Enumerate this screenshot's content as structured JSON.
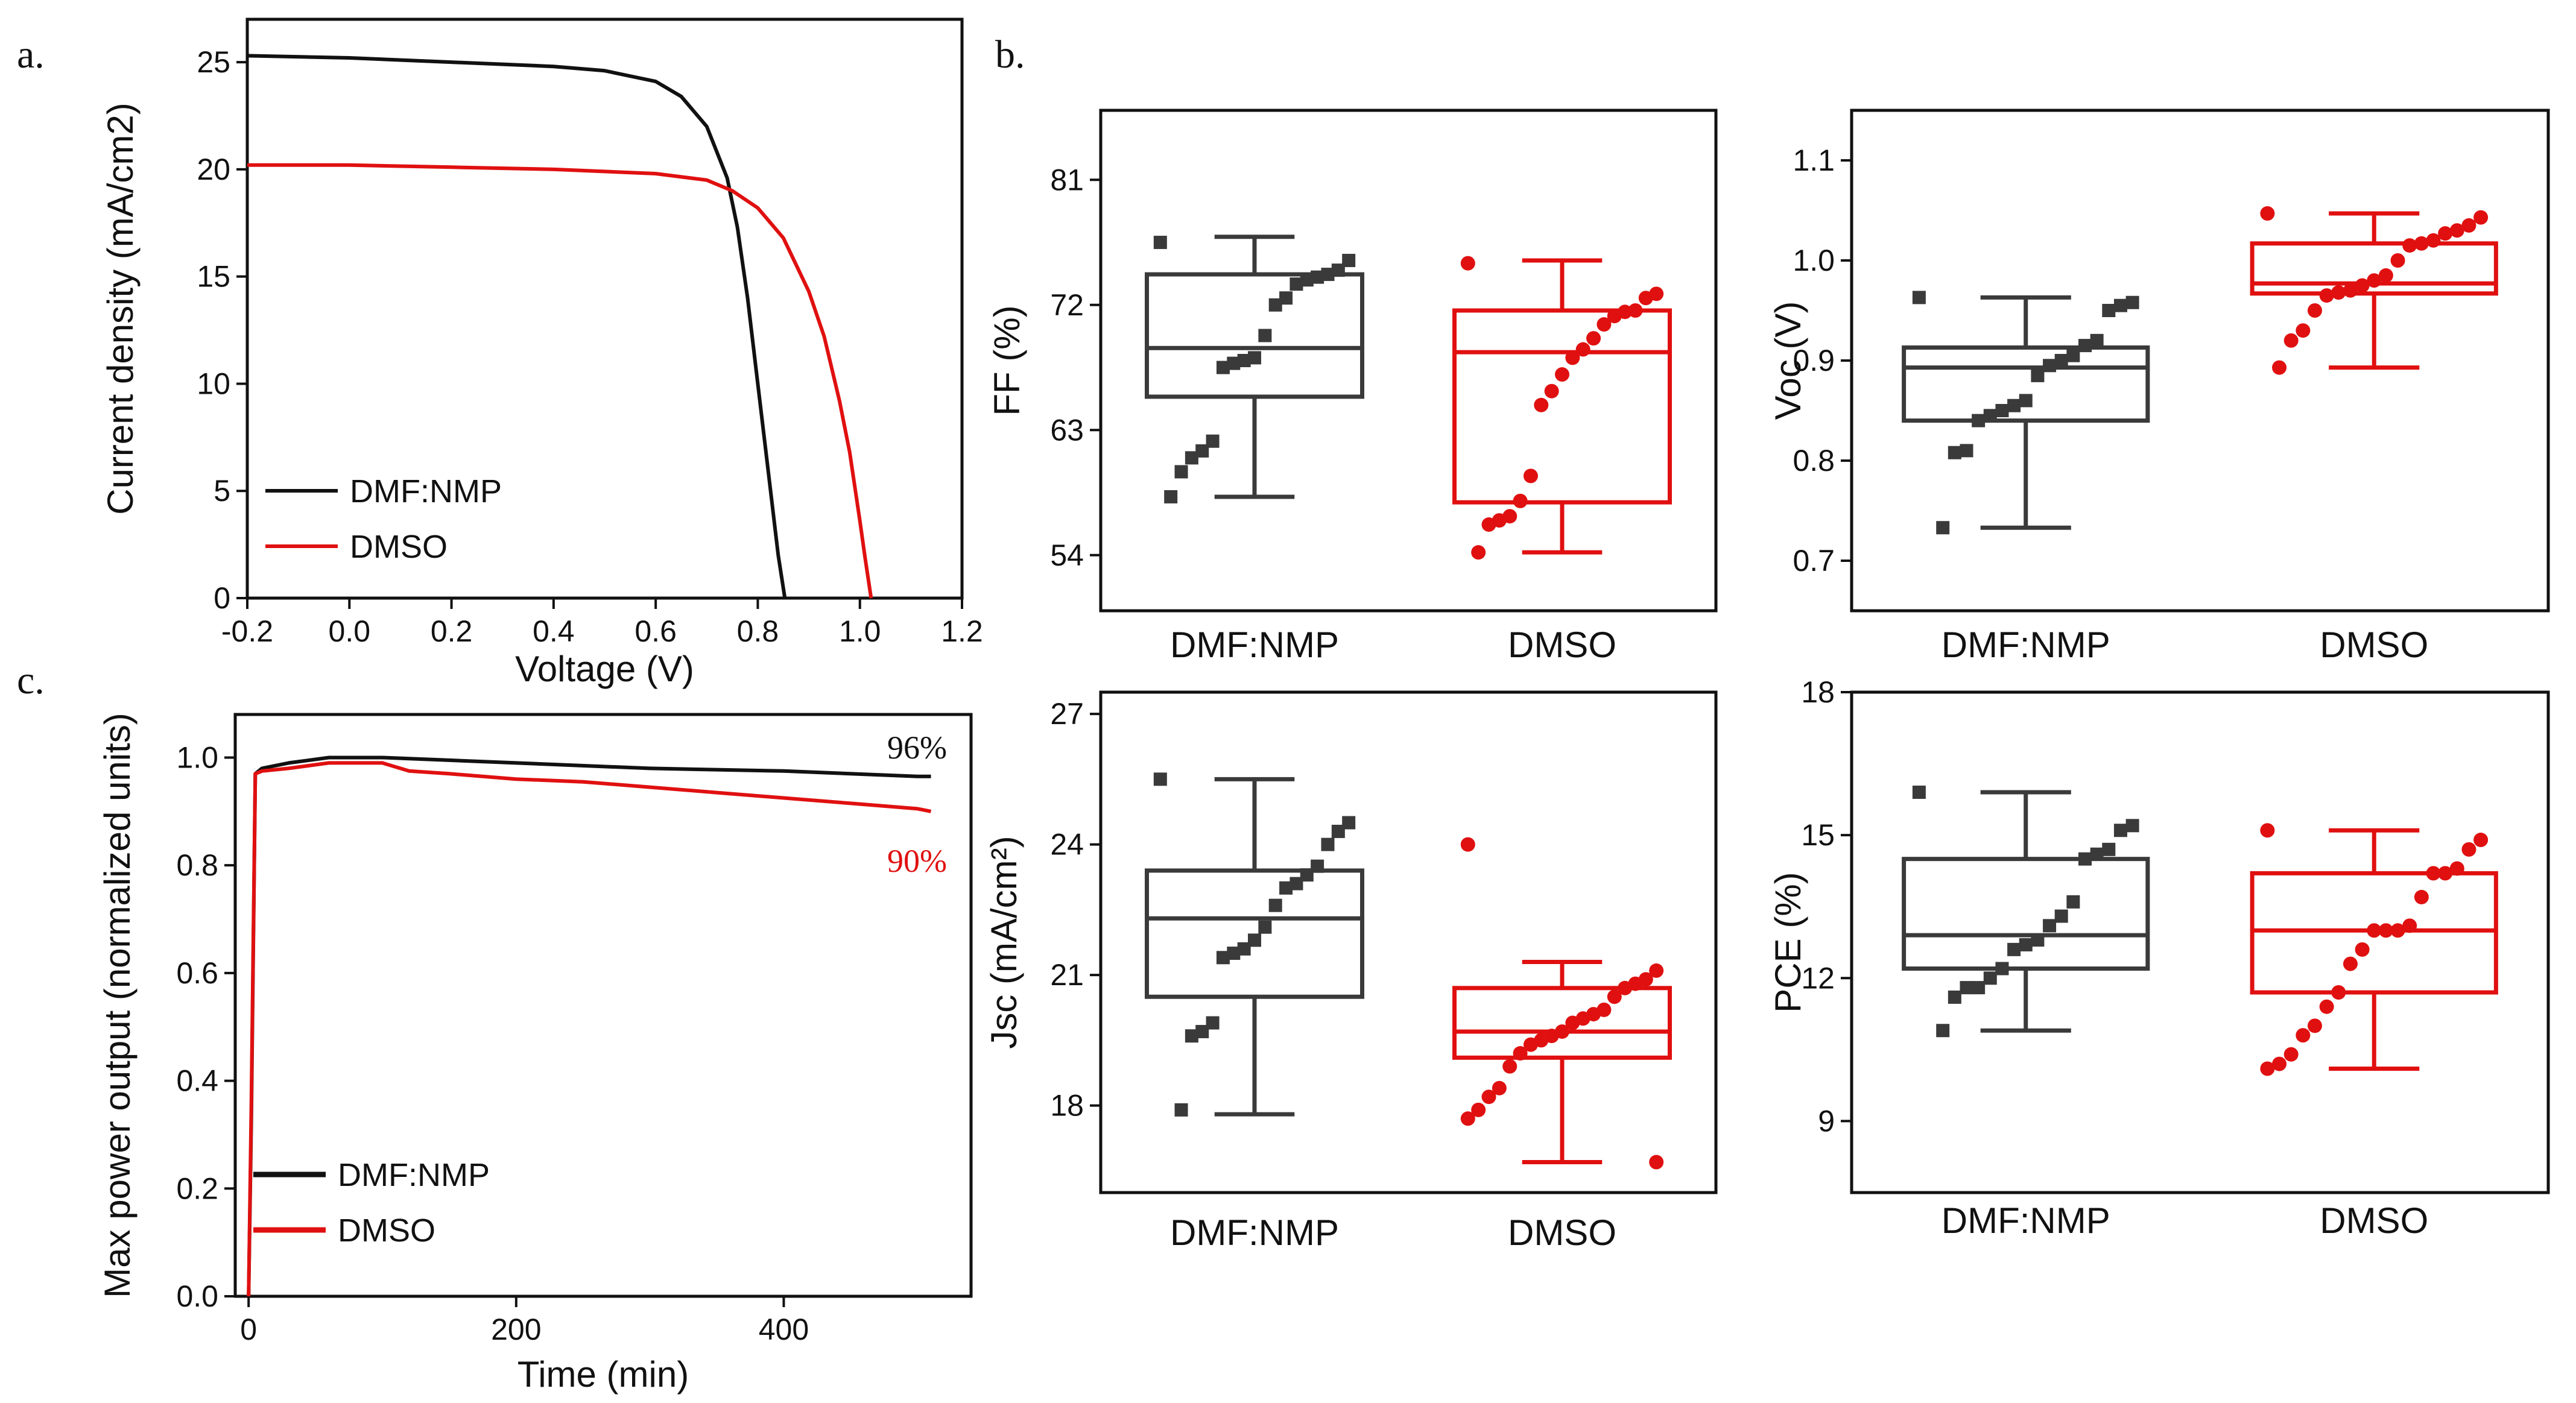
{
  "colors": {
    "black_series": "#111111",
    "red_series": "#e01010",
    "box_black": "#3a3a3a",
    "box_red": "#e01010"
  },
  "chart_data": [
    {
      "id": "a",
      "panel_label": "a.",
      "type": "line",
      "title": "",
      "xlabel": "Voltage (V)",
      "ylabel": "Current density (mA/cm2)",
      "xlim": [
        -0.2,
        1.2
      ],
      "ylim": [
        0,
        27
      ],
      "xticks": [
        -0.2,
        0.0,
        0.2,
        0.4,
        0.6,
        0.8,
        1.0,
        1.2
      ],
      "xtick_labels": [
        "-0.2",
        "0.0",
        "0.2",
        "0.4",
        "0.6",
        "0.8",
        "1.0",
        "1.2"
      ],
      "yticks": [
        0,
        5,
        10,
        15,
        20,
        25
      ],
      "ytick_labels": [
        "0",
        "5",
        "10",
        "15",
        "20",
        "25"
      ],
      "legend_position": "bottom-left",
      "series": [
        {
          "name": "DMF:NMP",
          "color": "#111111",
          "x": [
            -0.2,
            0.0,
            0.2,
            0.4,
            0.5,
            0.6,
            0.65,
            0.7,
            0.74,
            0.76,
            0.78,
            0.8,
            0.82,
            0.84,
            0.853
          ],
          "y": [
            25.3,
            25.2,
            25.0,
            24.8,
            24.6,
            24.1,
            23.4,
            22.0,
            19.6,
            17.3,
            14.0,
            10.0,
            6.0,
            2.0,
            0
          ]
        },
        {
          "name": "DMSO",
          "color": "#e01010",
          "x": [
            -0.2,
            0.0,
            0.2,
            0.4,
            0.6,
            0.7,
            0.75,
            0.8,
            0.85,
            0.9,
            0.93,
            0.96,
            0.98,
            1.0,
            1.01,
            1.022
          ],
          "y": [
            20.2,
            20.2,
            20.1,
            20.0,
            19.8,
            19.5,
            19.0,
            18.2,
            16.8,
            14.3,
            12.2,
            9.2,
            6.8,
            3.6,
            1.9,
            0
          ]
        }
      ]
    },
    {
      "id": "b-ff",
      "panel_label": "b.",
      "type": "box",
      "ylabel": "FF (%)",
      "categories": [
        "DMF:NMP",
        "DMSO"
      ],
      "ylim": [
        50,
        86
      ],
      "yticks": [
        54,
        63,
        72,
        81
      ],
      "ytick_labels": [
        "54",
        "63",
        "72",
        "81"
      ],
      "boxes": [
        {
          "name": "DMF:NMP",
          "color": "#3a3a3a",
          "marker": "square",
          "whisker_low": 58.2,
          "q1": 65.4,
          "median": 68.9,
          "q3": 74.2,
          "whisker_high": 76.9,
          "points": [
            76.5,
            75.2,
            74.5,
            74.2,
            74.0,
            73.8,
            73.5,
            72.5,
            72.0,
            69.8,
            68.2,
            68.0,
            67.8,
            67.5,
            62.2,
            61.5,
            61.0,
            60.0,
            58.2
          ]
        },
        {
          "name": "DMSO",
          "color": "#e01010",
          "marker": "circle",
          "whisker_low": 54.2,
          "q1": 57.8,
          "median": 68.6,
          "q3": 71.6,
          "whisker_high": 75.2,
          "points": [
            75.0,
            72.8,
            72.5,
            71.6,
            71.5,
            71.2,
            70.6,
            69.6,
            68.8,
            68.2,
            67.0,
            65.8,
            64.8,
            59.7,
            57.9,
            56.8,
            56.5,
            56.2,
            54.2
          ]
        }
      ]
    },
    {
      "id": "b-voc",
      "type": "box",
      "ylabel": "Voc (V)",
      "categories": [
        "DMF:NMP",
        "DMSO"
      ],
      "ylim": [
        0.65,
        1.15
      ],
      "yticks": [
        0.7,
        0.8,
        0.9,
        1.0,
        1.1
      ],
      "ytick_labels": [
        "0.7",
        "0.8",
        "0.9",
        "1.0",
        "1.1"
      ],
      "boxes": [
        {
          "name": "DMF:NMP",
          "color": "#3a3a3a",
          "marker": "square",
          "whisker_low": 0.733,
          "q1": 0.84,
          "median": 0.893,
          "q3": 0.913,
          "whisker_high": 0.963,
          "points": [
            0.963,
            0.958,
            0.955,
            0.95,
            0.92,
            0.915,
            0.905,
            0.9,
            0.895,
            0.885,
            0.86,
            0.855,
            0.85,
            0.845,
            0.84,
            0.81,
            0.808,
            0.733
          ]
        },
        {
          "name": "DMSO",
          "color": "#e01010",
          "marker": "circle",
          "whisker_low": 0.893,
          "q1": 0.967,
          "median": 0.977,
          "q3": 1.017,
          "whisker_high": 1.047,
          "points": [
            1.047,
            1.043,
            1.035,
            1.03,
            1.027,
            1.02,
            1.017,
            1.015,
            1.0,
            0.985,
            0.98,
            0.975,
            0.97,
            0.968,
            0.965,
            0.95,
            0.93,
            0.92,
            0.893
          ]
        }
      ]
    },
    {
      "id": "c",
      "panel_label": "c.",
      "type": "line",
      "xlabel": "Time (min)",
      "ylabel": "Max power output (normalized units)",
      "xlim": [
        -10,
        540
      ],
      "ylim": [
        0,
        1.08
      ],
      "xticks": [
        0,
        200,
        400
      ],
      "xtick_labels": [
        "0",
        "200",
        "400"
      ],
      "yticks": [
        0.0,
        0.2,
        0.4,
        0.6,
        0.8,
        1.0
      ],
      "ytick_labels": [
        "0.0",
        "0.2",
        "0.4",
        "0.6",
        "0.8",
        "1.0"
      ],
      "legend_position": "bottom-left",
      "annotations": [
        {
          "text": "96%",
          "series": "DMF:NMP"
        },
        {
          "text": "90%",
          "series": "DMSO"
        }
      ],
      "series": [
        {
          "name": "DMF:NMP",
          "color": "#111111",
          "x": [
            0,
            2,
            5,
            10,
            30,
            60,
            100,
            150,
            200,
            300,
            400,
            500,
            510
          ],
          "y": [
            0.0,
            0.32,
            0.97,
            0.98,
            0.99,
            1.0,
            1.0,
            0.995,
            0.99,
            0.98,
            0.975,
            0.965,
            0.965
          ]
        },
        {
          "name": "DMSO",
          "color": "#e01010",
          "x": [
            0,
            2,
            5,
            10,
            30,
            60,
            100,
            120,
            150,
            200,
            250,
            300,
            350,
            400,
            450,
            500,
            510
          ],
          "y": [
            0.0,
            0.35,
            0.97,
            0.975,
            0.98,
            0.99,
            0.99,
            0.975,
            0.97,
            0.96,
            0.955,
            0.945,
            0.935,
            0.925,
            0.915,
            0.905,
            0.9
          ]
        }
      ]
    },
    {
      "id": "b-jsc",
      "type": "box",
      "ylabel": "Jsc (mA/cm²)",
      "categories": [
        "DMF:NMP",
        "DMSO"
      ],
      "ylim": [
        16,
        27.5
      ],
      "yticks": [
        18,
        21,
        24,
        27
      ],
      "ytick_labels": [
        "18",
        "21",
        "24",
        "27"
      ],
      "boxes": [
        {
          "name": "DMF:NMP",
          "color": "#3a3a3a",
          "marker": "square",
          "whisker_low": 17.8,
          "q1": 20.5,
          "median": 22.3,
          "q3": 23.4,
          "whisker_high": 25.5,
          "points": [
            25.5,
            24.5,
            24.3,
            24.0,
            23.5,
            23.3,
            23.1,
            23.0,
            22.6,
            22.1,
            21.8,
            21.6,
            21.5,
            21.4,
            19.9,
            19.7,
            19.6,
            17.9
          ]
        },
        {
          "name": "DMSO",
          "color": "#e01010",
          "marker": "circle",
          "whisker_low": 16.7,
          "q1": 19.1,
          "median": 19.7,
          "q3": 20.7,
          "whisker_high": 21.3,
          "points": [
            24.0,
            21.1,
            20.9,
            20.8,
            20.7,
            20.5,
            20.2,
            20.1,
            20.0,
            19.9,
            19.7,
            19.6,
            19.5,
            19.4,
            19.2,
            18.9,
            18.4,
            18.2,
            17.9,
            17.7,
            16.7
          ]
        }
      ]
    },
    {
      "id": "b-pce",
      "type": "box",
      "ylabel": "PCE (%)",
      "categories": [
        "DMF:NMP",
        "DMSO"
      ],
      "ylim": [
        7.5,
        18
      ],
      "yticks": [
        9,
        12,
        15,
        18
      ],
      "ytick_labels": [
        "9",
        "12",
        "15",
        "18"
      ],
      "boxes": [
        {
          "name": "DMF:NMP",
          "color": "#3a3a3a",
          "marker": "square",
          "whisker_low": 10.9,
          "q1": 12.2,
          "median": 12.9,
          "q3": 14.5,
          "whisker_high": 15.9,
          "points": [
            15.9,
            15.2,
            15.1,
            14.7,
            14.6,
            14.5,
            13.6,
            13.3,
            13.1,
            12.8,
            12.7,
            12.6,
            12.2,
            12.0,
            11.8,
            11.8,
            11.6,
            10.9
          ]
        },
        {
          "name": "DMSO",
          "color": "#e01010",
          "marker": "circle",
          "whisker_low": 10.1,
          "q1": 11.7,
          "median": 13.0,
          "q3": 14.2,
          "whisker_high": 15.1,
          "points": [
            15.1,
            14.9,
            14.7,
            14.3,
            14.2,
            14.2,
            13.7,
            13.1,
            13.0,
            13.0,
            13.0,
            12.6,
            12.3,
            11.7,
            11.4,
            11.0,
            10.8,
            10.4,
            10.2,
            10.1
          ]
        }
      ]
    }
  ]
}
